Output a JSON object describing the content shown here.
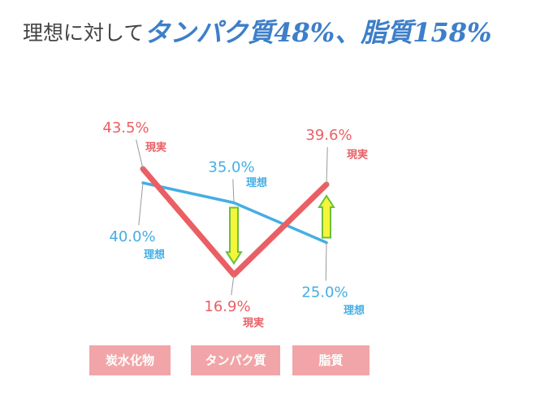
{
  "chart_data": {
    "type": "line",
    "title": {
      "lead": "理想に対して",
      "highlight": "タンパク質48%、脂質158%"
    },
    "categories": [
      "炭水化物",
      "タンパク質",
      "脂質"
    ],
    "series": [
      {
        "name": "現実",
        "color": "#ea5f64",
        "values": [
          43.5,
          16.9,
          39.6
        ],
        "value_labels": [
          "43.5%",
          "16.9%",
          "39.6%"
        ]
      },
      {
        "name": "理想",
        "color": "#45aee3",
        "values": [
          40.0,
          35.0,
          25.0
        ],
        "value_labels": [
          "40.0%",
          "35.0%",
          "25.0%"
        ]
      }
    ],
    "ylim": [
      10,
      50
    ]
  }
}
